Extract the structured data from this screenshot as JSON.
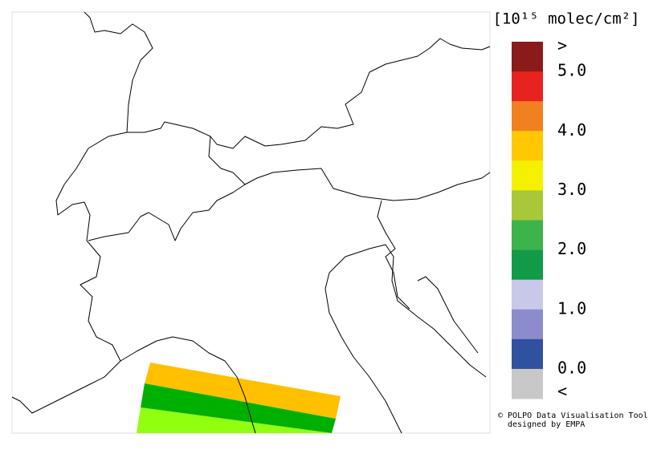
{
  "legend": {
    "title": "[10¹⁵ molec/cm²]",
    "colors": [
      "#8b1a1a",
      "#e8231f",
      "#f08020",
      "#ffc800",
      "#f5f000",
      "#a8c83a",
      "#3cb44b",
      "#119a48",
      "#c8c8e8",
      "#8c8ccc",
      "#3050a0",
      "#c8c8c8"
    ],
    "labels": [
      ">",
      "5.0",
      "4.0",
      "3.0",
      "2.0",
      "1.0",
      "0.0",
      "<"
    ]
  },
  "credit": [
    "© POLPO Data Visualisation Tool",
    "designed by EMPA"
  ]
}
